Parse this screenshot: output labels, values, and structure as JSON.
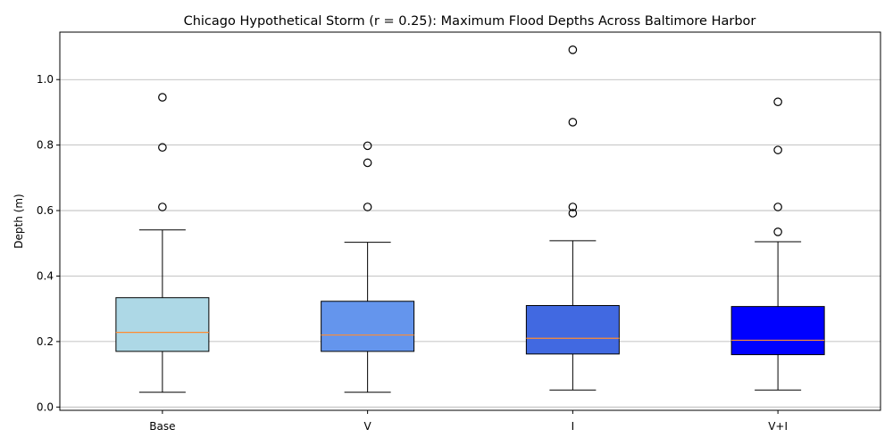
{
  "chart_data": {
    "type": "box",
    "title": "Chicago Hypothetical Storm (r = 0.25): Maximum Flood Depths Across Baltimore Harbor",
    "xlabel": "",
    "ylabel": "Depth (m)",
    "ylim": [
      -0.01,
      1.145
    ],
    "yticks": [
      "0.0",
      "0.2",
      "0.4",
      "0.6",
      "0.8",
      "1.0"
    ],
    "ytick_values": [
      0.0,
      0.2,
      0.4,
      0.6,
      0.8,
      1.0
    ],
    "grid": "horizontal",
    "median_color": "#ff8c32",
    "categories": [
      "Base",
      "V",
      "I",
      "V+I"
    ],
    "series": [
      {
        "category": "Base",
        "color": "#add8e6",
        "whisker_low": 0.045,
        "q1": 0.17,
        "median": 0.228,
        "q3": 0.334,
        "whisker_high": 0.541,
        "outliers": [
          0.611,
          0.793,
          0.946
        ]
      },
      {
        "category": "V",
        "color": "#6495ed",
        "whisker_low": 0.045,
        "q1": 0.17,
        "median": 0.22,
        "q3": 0.323,
        "whisker_high": 0.503,
        "outliers": [
          0.611,
          0.746,
          0.798
        ]
      },
      {
        "category": "I",
        "color": "#4169e1",
        "whisker_low": 0.052,
        "q1": 0.162,
        "median": 0.21,
        "q3": 0.31,
        "whisker_high": 0.508,
        "outliers": [
          0.592,
          0.611,
          0.87,
          1.091
        ]
      },
      {
        "category": "V+I",
        "color": "#0000ff",
        "whisker_low": 0.052,
        "q1": 0.16,
        "median": 0.204,
        "q3": 0.307,
        "whisker_high": 0.505,
        "outliers": [
          0.535,
          0.611,
          0.785,
          0.932
        ]
      }
    ]
  }
}
